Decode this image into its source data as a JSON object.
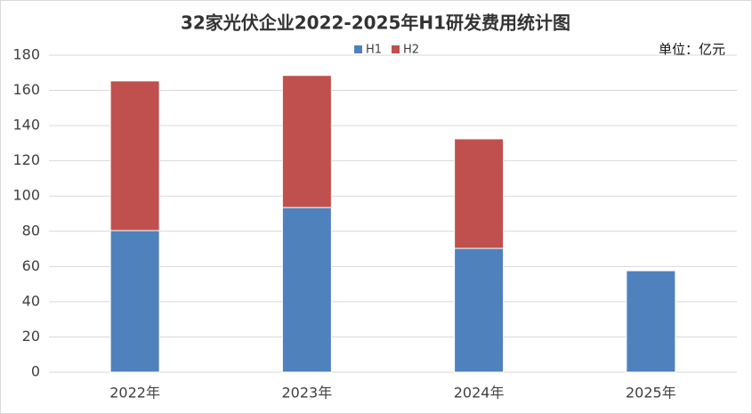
{
  "chart_data": {
    "type": "stacked_bar",
    "title": "32家光伏企业2022-2025年H1研发费用统计图",
    "unit_label": "单位：亿元",
    "categories": [
      "2022年",
      "2023年",
      "2024年",
      "2025年"
    ],
    "series": [
      {
        "name": "H1",
        "color": "#4f81bd",
        "values": [
          80.4,
          93.5,
          70.3,
          57.6
        ]
      },
      {
        "name": "H2",
        "color": "#c0504d",
        "values": [
          85,
          75,
          62.2,
          null
        ]
      }
    ],
    "ylim": [
      0,
      180
    ],
    "yticks": [
      0,
      20,
      40,
      60,
      80,
      100,
      120,
      140,
      160,
      180
    ],
    "grid": true,
    "legend": "top"
  }
}
